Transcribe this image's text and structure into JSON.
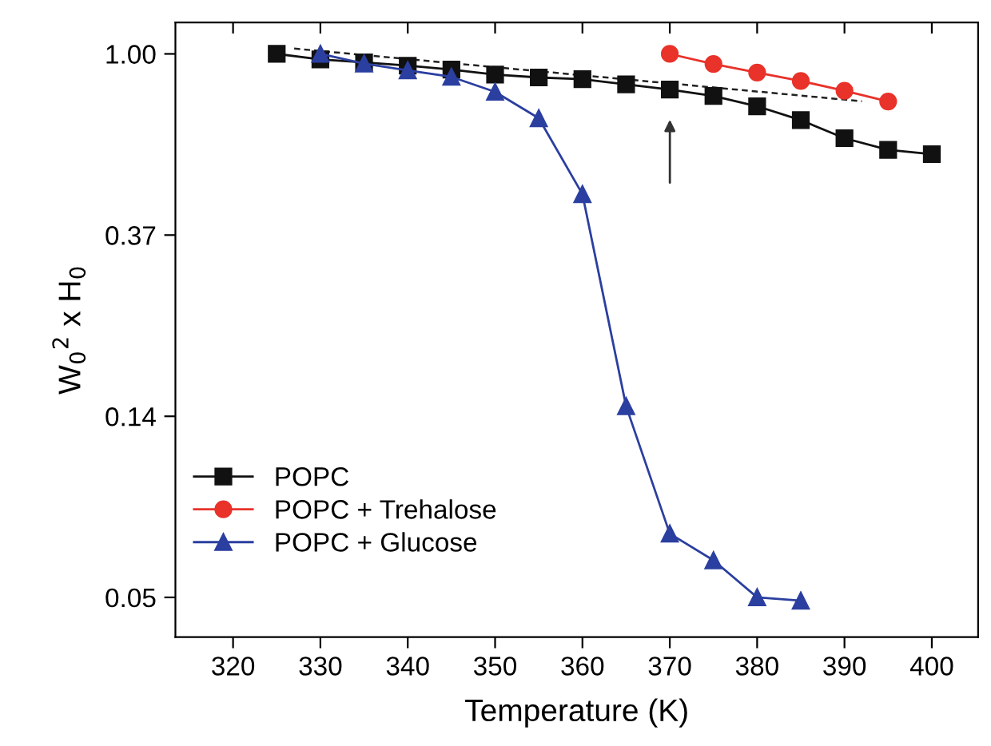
{
  "chart_data": {
    "type": "line",
    "xlabel": "Temperature (K)",
    "ylabel": "W$_{0}$$^{2}$ x H$_{0}$",
    "log": "y",
    "xlim": [
      313.4,
      405.3
    ],
    "xticks": [
      320,
      330,
      340,
      350,
      360,
      370,
      380,
      390,
      400
    ],
    "ylim": [
      0.04,
      1.19
    ],
    "yticks": [
      {
        "value": 1,
        "label": "1.00"
      },
      {
        "value": 0.3679,
        "label": "0.37"
      },
      {
        "value": 0.1353,
        "label": "0.14"
      },
      {
        "value": 0.0498,
        "label": "0.05"
      }
    ],
    "grid": false,
    "legend": "bottom left",
    "line_style": "solid",
    "series": [
      {
        "name": "POPC",
        "color": "#111111",
        "marker": "square",
        "x": [
          325,
          330,
          335,
          340,
          345,
          350,
          355,
          360,
          365,
          370,
          375,
          380,
          385,
          390,
          395,
          400
        ],
        "values": [
          1.0,
          0.97,
          0.954,
          0.937,
          0.917,
          0.892,
          0.878,
          0.87,
          0.845,
          0.821,
          0.793,
          0.749,
          0.694,
          0.628,
          0.589,
          0.575
        ]
      },
      {
        "name": "POPC + Trehalose",
        "color": "#e8322a",
        "marker": "circle",
        "x": [
          370,
          375,
          380,
          385,
          390,
          395
        ],
        "values": [
          1.0,
          0.946,
          0.902,
          0.861,
          0.816,
          0.769
        ]
      },
      {
        "name": "POPC + Glucose",
        "color": "#2b3fa0",
        "marker": "triangle",
        "x": [
          330,
          335,
          340,
          345,
          350,
          355,
          360,
          365,
          370,
          375,
          380,
          385
        ],
        "values": [
          1.0,
          0.948,
          0.913,
          0.881,
          0.811,
          0.701,
          0.461,
          0.143,
          0.0708,
          0.0611,
          0.0498,
          0.0489
        ]
      },
      {
        "type": "line",
        "color": "#222222",
        "marker": "none",
        "line_style": "dashed",
        "x": [
          327,
          392
        ],
        "values": [
          1.03,
          0.77
        ]
      }
    ]
  }
}
